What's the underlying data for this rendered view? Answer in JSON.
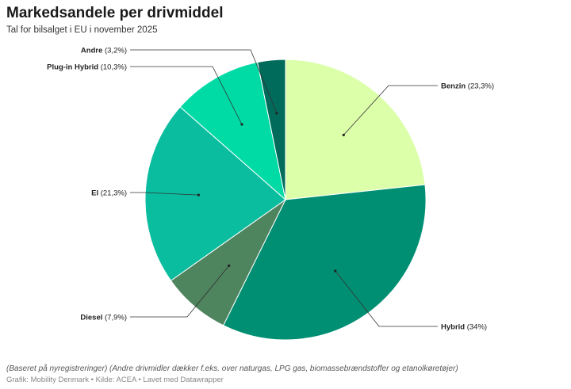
{
  "header": {
    "title": "Markedsandele per drivmiddel",
    "subtitle": "Tal for bilsalget i EU i november 2025"
  },
  "footer": {
    "note": "(Baseret på nyregistreringer) (Andre drivmidler dækker f.eks. over naturgas, LPG gas, biomassebrændstoffer og etanolkøretøjer)",
    "source": "Grafik: Mobility Denmark • Kilde: ACEA • Lavet med Datawrapper"
  },
  "chart_data": {
    "type": "pie",
    "title": "Markedsandele per drivmiddel",
    "subtitle": "Tal for bilsalget i EU i november 2025",
    "start": "12 o'clock, clockwise",
    "slices": [
      {
        "name": "Benzin",
        "value": 23.3,
        "value_label": "(23,3%)",
        "color": "#dcffa9"
      },
      {
        "name": "Hybrid",
        "value": 34,
        "value_label": "(34%)",
        "color": "#008f73"
      },
      {
        "name": "Diesel",
        "value": 7.9,
        "value_label": "(7,9%)",
        "color": "#4e845e"
      },
      {
        "name": "El",
        "value": 21.3,
        "value_label": "(21,3%)",
        "color": "#0abd9e"
      },
      {
        "name": "Plug-in Hybrid",
        "value": 10.3,
        "value_label": "(10,3%)",
        "color": "#00dba6"
      },
      {
        "name": "Andre",
        "value": 3.2,
        "value_label": "(3,2%)",
        "color": "#006b5b"
      }
    ]
  }
}
